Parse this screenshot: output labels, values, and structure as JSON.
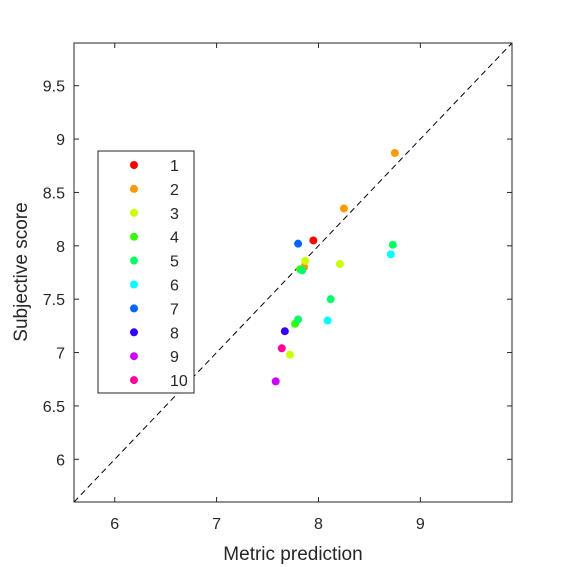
{
  "chart_data": {
    "type": "scatter",
    "title": "",
    "xlabel": "Metric prediction",
    "ylabel": "Subjective score",
    "xlim": [
      5.6,
      9.9
    ],
    "ylim": [
      5.6,
      9.9
    ],
    "xticks": [
      6,
      7,
      8,
      9
    ],
    "yticks": [
      6,
      6.5,
      7,
      7.5,
      8,
      8.5,
      9,
      9.5
    ],
    "xtick_labels": [
      "6",
      "7",
      "8",
      "9"
    ],
    "ytick_labels": [
      "6",
      "6.5",
      "7",
      "7.5",
      "8",
      "8.5",
      "9",
      "9.5"
    ],
    "grid": false,
    "legend_position": "left",
    "reference_line": {
      "style": "dashed",
      "color": "#000000",
      "from": [
        5.6,
        5.6
      ],
      "to": [
        9.9,
        9.9
      ]
    },
    "series": [
      {
        "name": "1",
        "color": "#ff0000",
        "points": [
          [
            7.95,
            8.05
          ]
        ]
      },
      {
        "name": "2",
        "color": "#ff9900",
        "points": [
          [
            8.75,
            8.87
          ],
          [
            8.25,
            8.35
          ],
          [
            7.86,
            7.8
          ]
        ]
      },
      {
        "name": "3",
        "color": "#ccff00",
        "points": [
          [
            7.87,
            7.86
          ],
          [
            8.21,
            7.83
          ],
          [
            7.72,
            6.98
          ]
        ]
      },
      {
        "name": "4",
        "color": "#33ff00",
        "points": [
          [
            7.82,
            7.78
          ],
          [
            7.77,
            7.27
          ]
        ]
      },
      {
        "name": "5",
        "color": "#00ff66",
        "points": [
          [
            8.73,
            8.01
          ],
          [
            8.12,
            7.5
          ],
          [
            7.8,
            7.31
          ],
          [
            7.84,
            7.77
          ]
        ]
      },
      {
        "name": "6",
        "color": "#00ffff",
        "points": [
          [
            8.71,
            7.92
          ],
          [
            8.09,
            7.3
          ]
        ]
      },
      {
        "name": "7",
        "color": "#0066ff",
        "points": [
          [
            7.8,
            8.02
          ]
        ]
      },
      {
        "name": "8",
        "color": "#3300ff",
        "points": [
          [
            7.67,
            7.2
          ]
        ]
      },
      {
        "name": "9",
        "color": "#cc00ff",
        "points": [
          [
            7.58,
            6.73
          ]
        ]
      },
      {
        "name": "10",
        "color": "#ff0099",
        "points": [
          [
            7.64,
            7.04
          ]
        ]
      }
    ]
  }
}
